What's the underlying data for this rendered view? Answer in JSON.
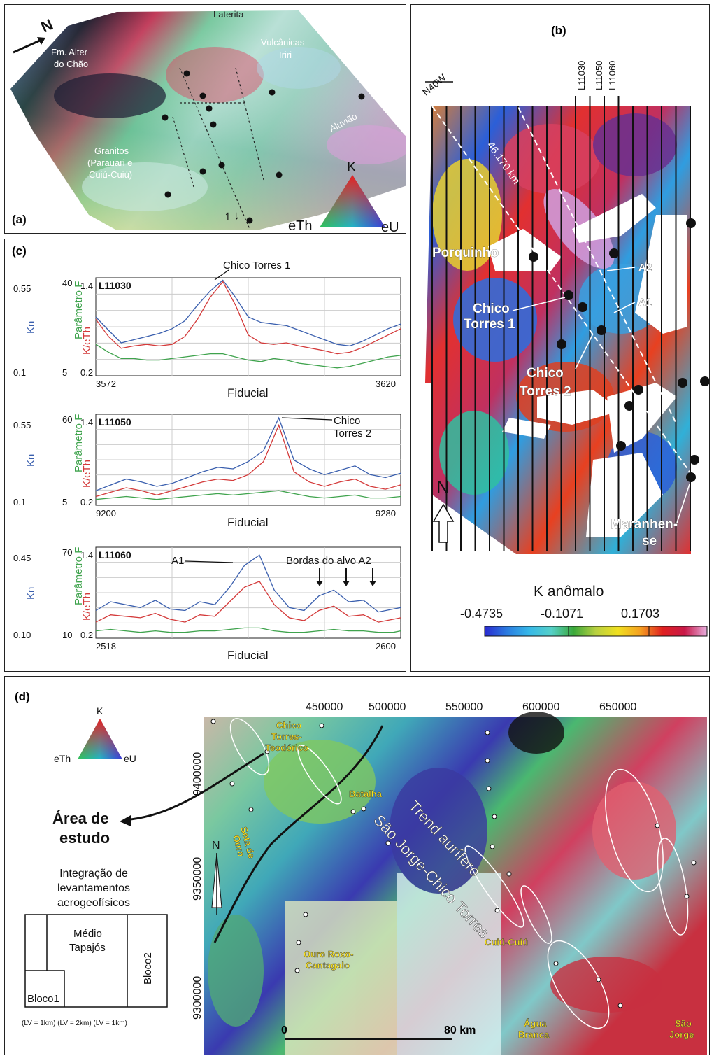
{
  "panel_a": {
    "letter": "(a)",
    "north": "N",
    "labels": {
      "laterita": "Laterita",
      "fm_alter_1": "Fm. Alter",
      "fm_alter_2": "do Chão",
      "vulcanicas_1": "Vulcânicas",
      "vulcanicas_2": "Iriri",
      "aluviao": "Aluvião",
      "granitos_1": "Granitos",
      "granitos_2": "(Parauari e",
      "granitos_3": "Cuiú-Cuiú)"
    },
    "ternary": {
      "k": "K",
      "eth": "eTh",
      "eu": "eU"
    }
  },
  "panel_b": {
    "letter": "(b)",
    "lines": [
      "L11030",
      "L11050",
      "L11060"
    ],
    "azimuth": "N40W",
    "distance": "46.170 km",
    "targets": {
      "porquinho": "Porquinho",
      "a2": "A2",
      "a1": "A1",
      "chico1_a": "Chico",
      "chico1_b": "Torres 1",
      "chico2_a": "Chico",
      "chico2_b": "Torres 2",
      "maranhense_a": "Maranhen-",
      "maranhense_b": "se"
    },
    "north": "N",
    "colorbar": {
      "title": "K anômalo",
      "ticks": [
        "-0.4735",
        "-0.1071",
        "0.1703"
      ],
      "colors": [
        "#2a2ad0",
        "#2b7be0",
        "#36b8e8",
        "#55d0c8",
        "#66c866",
        "#3aa83a",
        "#b8d040",
        "#f0e020",
        "#f5a020",
        "#f06020",
        "#e02020",
        "#c81848",
        "#d060b0",
        "#e8b0e0"
      ]
    }
  },
  "panel_c": {
    "letter": "(c)",
    "axis_kn": "Kn",
    "axis_f": "Parâmetro F",
    "axis_keth": "K/eTh",
    "xlabel": "Fiducial",
    "series_colors": {
      "kn": "#3a5fae",
      "keth": "#d43a3a",
      "f": "#3fa34d"
    },
    "charts": [
      {
        "line": "L11030",
        "kn_ticks": [
          "0.55",
          "0.1"
        ],
        "f_ticks": [
          "40",
          "5"
        ],
        "keth_ticks": [
          "1.4",
          "0.2"
        ],
        "x_ticks": [
          "3572",
          "3620"
        ],
        "xlim": [
          3572,
          3620
        ],
        "annotations": [
          "Chico Torres 1"
        ],
        "chart_data": {
          "type": "line",
          "x": [
            3572,
            3574,
            3576,
            3578,
            3580,
            3582,
            3584,
            3586,
            3588,
            3590,
            3592,
            3594,
            3596,
            3598,
            3600,
            3602,
            3604,
            3606,
            3608,
            3610,
            3612,
            3614,
            3616,
            3618,
            3620
          ],
          "series": [
            {
              "values": [
                0.95,
                0.78,
                0.62,
                0.66,
                0.7,
                0.74,
                0.8,
                0.9,
                1.1,
                1.28,
                1.42,
                1.2,
                0.95,
                0.88,
                0.86,
                0.84,
                0.78,
                0.72,
                0.66,
                0.6,
                0.58,
                0.64,
                0.72,
                0.8,
                0.86
              ]
            },
            {
              "values": [
                0.92,
                0.7,
                0.55,
                0.58,
                0.6,
                0.58,
                0.6,
                0.7,
                0.92,
                1.2,
                1.4,
                1.1,
                0.72,
                0.62,
                0.6,
                0.62,
                0.58,
                0.55,
                0.52,
                0.48,
                0.5,
                0.56,
                0.64,
                0.72,
                0.8
              ]
            },
            {
              "values": [
                0.6,
                0.5,
                0.42,
                0.42,
                0.4,
                0.4,
                0.42,
                0.44,
                0.46,
                0.48,
                0.48,
                0.44,
                0.4,
                0.38,
                0.42,
                0.4,
                0.36,
                0.34,
                0.32,
                0.3,
                0.32,
                0.36,
                0.4,
                0.44,
                0.46
              ]
            }
          ]
        }
      },
      {
        "line": "L11050",
        "kn_ticks": [
          "0.55",
          "0.1"
        ],
        "f_ticks": [
          "60",
          "5"
        ],
        "keth_ticks": [
          "1.4",
          "0.2"
        ],
        "x_ticks": [
          "9200",
          "9280"
        ],
        "xlim": [
          9200,
          9280
        ],
        "annotations": [
          "Chico",
          "Torres 2"
        ],
        "chart_data": {
          "type": "line",
          "x": [
            9200,
            9204,
            9208,
            9212,
            9216,
            9220,
            9224,
            9228,
            9232,
            9236,
            9240,
            9244,
            9248,
            9252,
            9256,
            9260,
            9264,
            9268,
            9272,
            9276,
            9280
          ],
          "series": [
            {
              "values": [
                0.4,
                0.48,
                0.56,
                0.52,
                0.46,
                0.5,
                0.58,
                0.66,
                0.72,
                0.7,
                0.8,
                0.95,
                1.4,
                0.82,
                0.7,
                0.62,
                0.68,
                0.74,
                0.62,
                0.58,
                0.64
              ]
            },
            {
              "values": [
                0.32,
                0.38,
                0.44,
                0.4,
                0.34,
                0.4,
                0.46,
                0.52,
                0.56,
                0.54,
                0.62,
                0.8,
                1.3,
                0.66,
                0.52,
                0.46,
                0.52,
                0.56,
                0.46,
                0.42,
                0.48
              ]
            },
            {
              "values": [
                0.28,
                0.3,
                0.32,
                0.3,
                0.28,
                0.3,
                0.32,
                0.34,
                0.36,
                0.34,
                0.36,
                0.38,
                0.4,
                0.36,
                0.32,
                0.3,
                0.32,
                0.34,
                0.3,
                0.3,
                0.32
              ]
            }
          ]
        }
      },
      {
        "line": "L11060",
        "kn_ticks": [
          "0.45",
          "0.10"
        ],
        "f_ticks": [
          "70",
          "10"
        ],
        "keth_ticks": [
          "1.4",
          "0.2"
        ],
        "x_ticks": [
          "2518",
          "2600"
        ],
        "xlim": [
          2518,
          2600
        ],
        "annotations": [
          "A1",
          "Bordas do alvo A2"
        ],
        "chart_data": {
          "type": "line",
          "x": [
            2518,
            2522,
            2526,
            2530,
            2534,
            2538,
            2542,
            2546,
            2550,
            2554,
            2558,
            2562,
            2566,
            2570,
            2574,
            2578,
            2582,
            2586,
            2590,
            2594,
            2598,
            2600
          ],
          "series": [
            {
              "values": [
                0.58,
                0.7,
                0.66,
                0.62,
                0.72,
                0.6,
                0.58,
                0.7,
                0.66,
                0.9,
                1.2,
                1.34,
                0.86,
                0.62,
                0.58,
                0.78,
                0.86,
                0.7,
                0.72,
                0.56,
                0.6,
                0.62
              ]
            },
            {
              "values": [
                0.42,
                0.52,
                0.5,
                0.48,
                0.54,
                0.46,
                0.42,
                0.52,
                0.5,
                0.7,
                0.9,
                0.98,
                0.66,
                0.48,
                0.44,
                0.58,
                0.64,
                0.5,
                0.52,
                0.42,
                0.46,
                0.48
              ]
            },
            {
              "values": [
                0.3,
                0.32,
                0.3,
                0.28,
                0.3,
                0.28,
                0.28,
                0.3,
                0.3,
                0.32,
                0.34,
                0.34,
                0.3,
                0.28,
                0.28,
                0.3,
                0.32,
                0.3,
                0.3,
                0.28,
                0.28,
                0.3
              ]
            }
          ]
        }
      }
    ]
  },
  "panel_d": {
    "letter": "(d)",
    "x_ticks": [
      "450000",
      "500000",
      "550000",
      "600000",
      "650000"
    ],
    "y_ticks": [
      "9400000",
      "9350000",
      "9300000"
    ],
    "ternary": {
      "k": "K",
      "eth": "eTh",
      "eu": "eU"
    },
    "study_area_1": "Área de",
    "study_area_2": "estudo",
    "integration_1": "Integração de",
    "integration_2": "levantamentos",
    "integration_3": "aerogeofísicos",
    "blocks": {
      "medio_1": "Médio",
      "medio_2": "Tapajós",
      "bloco1": "Bloco1",
      "bloco2": "Bloco2"
    },
    "lv_note": "(LV = 1km) (LV = 2km) (LV = 1km)",
    "north": "N",
    "scale_zero": "0",
    "scale_km": "80 km",
    "places": {
      "chico_1": "Chico",
      "chico_2": "Torres-",
      "chico_3": "Teodórico",
      "batalha": "Batalha",
      "seta_1": "Seta de",
      "seta_2": "Ouro",
      "cuiu": "Cuiú-Cuiú",
      "ouro_1": "Ouro Roxo-",
      "ouro_2": "Cantagalo",
      "agua_1": "Água",
      "agua_2": "Branca",
      "sao_1": "São",
      "sao_2": "Jorge"
    },
    "trend_1": "Trend aurífero",
    "trend_2": "São Jorge-Chico Torres"
  }
}
